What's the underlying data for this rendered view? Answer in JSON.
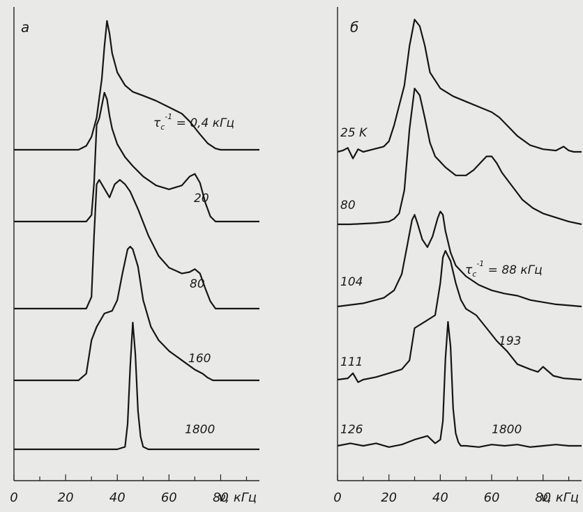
{
  "chart_data": [
    {
      "type": "line",
      "panel_label": "а",
      "xlabel": "ν, кГц",
      "xlim": [
        0,
        95
      ],
      "x_ticks": [
        "0",
        "20",
        "40",
        "60",
        "80"
      ],
      "series": [
        {
          "name": "τ_c⁻¹ = 0,4 кГц",
          "label_html": "τ<tspan baseline-shift=\"-4\" font-size=\"11\">c</tspan><tspan baseline-shift=\"11\" font-size=\"11\">-1</tspan><tspan> = 0,4 кГц</tspan>",
          "x": [
            0,
            25,
            28,
            30,
            32,
            34,
            35,
            36,
            37,
            38,
            40,
            43,
            46,
            50,
            55,
            60,
            65,
            68,
            72,
            75,
            78,
            80,
            95
          ],
          "y": [
            0,
            0,
            0.03,
            0.1,
            0.25,
            0.55,
            0.8,
            1.0,
            0.9,
            0.75,
            0.6,
            0.5,
            0.45,
            0.42,
            0.38,
            0.33,
            0.28,
            0.22,
            0.12,
            0.05,
            0.01,
            0,
            0
          ]
        },
        {
          "name": "20",
          "x": [
            0,
            28,
            30,
            31,
            32,
            33,
            34,
            35,
            36,
            37,
            38,
            40,
            43,
            46,
            50,
            55,
            60,
            65,
            68,
            70,
            72,
            74,
            76,
            78,
            95
          ],
          "y": [
            0,
            0,
            0.05,
            0.3,
            0.75,
            0.8,
            0.9,
            1.0,
            0.95,
            0.82,
            0.72,
            0.6,
            0.5,
            0.43,
            0.35,
            0.28,
            0.25,
            0.28,
            0.35,
            0.37,
            0.3,
            0.15,
            0.04,
            0,
            0
          ]
        },
        {
          "name": "80",
          "x": [
            0,
            28,
            30,
            31,
            32,
            33,
            35,
            37,
            39,
            41,
            43,
            45,
            48,
            52,
            56,
            60,
            65,
            68,
            70,
            72,
            74,
            76,
            78,
            95
          ],
          "y": [
            0,
            0,
            0.08,
            0.5,
            0.85,
            0.88,
            0.82,
            0.76,
            0.85,
            0.88,
            0.85,
            0.8,
            0.68,
            0.5,
            0.36,
            0.28,
            0.24,
            0.25,
            0.27,
            0.24,
            0.14,
            0.05,
            0,
            0
          ]
        },
        {
          "name": "160",
          "x": [
            0,
            25,
            28,
            30,
            32,
            35,
            38,
            40,
            42,
            44,
            45,
            46,
            48,
            50,
            53,
            56,
            60,
            65,
            70,
            73,
            75,
            77,
            95
          ],
          "y": [
            0,
            0,
            0.05,
            0.3,
            0.4,
            0.5,
            0.52,
            0.6,
            0.8,
            0.98,
            1.0,
            0.98,
            0.85,
            0.6,
            0.4,
            0.3,
            0.22,
            0.15,
            0.08,
            0.05,
            0.02,
            0,
            0
          ]
        },
        {
          "name": "1800",
          "x": [
            0,
            40,
            43,
            44,
            45,
            46,
            47,
            48,
            49,
            50,
            52,
            95
          ],
          "y": [
            0,
            0,
            0.02,
            0.2,
            0.65,
            1.0,
            0.75,
            0.3,
            0.1,
            0.02,
            0,
            0
          ]
        }
      ]
    },
    {
      "type": "line",
      "panel_label": "б",
      "xlabel": "ν, кГц",
      "xlim": [
        0,
        95
      ],
      "x_ticks": [
        "0",
        "20",
        "40",
        "60",
        "80"
      ],
      "annotation": "τ<tspan baseline-shift=\"-4\" font-size=\"11\">c</tspan><tspan baseline-shift=\"11\" font-size=\"11\">-1</tspan><tspan> = 88 кГц</tspan>",
      "series": [
        {
          "name": "25 K",
          "x": [
            0,
            2,
            4,
            6,
            8,
            10,
            14,
            18,
            20,
            22,
            24,
            26,
            28,
            30,
            32,
            34,
            36,
            40,
            45,
            50,
            55,
            60,
            63,
            66,
            70,
            75,
            80,
            85,
            88,
            90,
            92,
            95
          ],
          "y": [
            0,
            0.01,
            0.03,
            -0.05,
            0.02,
            0,
            0.02,
            0.04,
            0.08,
            0.2,
            0.35,
            0.5,
            0.8,
            1.0,
            0.95,
            0.8,
            0.6,
            0.48,
            0.42,
            0.38,
            0.34,
            0.3,
            0.26,
            0.2,
            0.12,
            0.05,
            0.02,
            0.01,
            0.04,
            0.01,
            0,
            0
          ]
        },
        {
          "name": "80",
          "x": [
            0,
            5,
            15,
            20,
            22,
            24,
            26,
            28,
            30,
            32,
            34,
            36,
            38,
            42,
            46,
            50,
            53,
            56,
            58,
            60,
            62,
            64,
            68,
            72,
            76,
            80,
            85,
            90,
            95
          ],
          "y": [
            0,
            0,
            0.01,
            0.02,
            0.04,
            0.08,
            0.25,
            0.7,
            1.0,
            0.95,
            0.78,
            0.6,
            0.5,
            0.42,
            0.36,
            0.36,
            0.4,
            0.46,
            0.5,
            0.5,
            0.45,
            0.38,
            0.28,
            0.18,
            0.12,
            0.08,
            0.05,
            0.02,
            0
          ]
        },
        {
          "name": "104",
          "x": [
            0,
            10,
            18,
            22,
            25,
            27,
            29,
            30,
            31,
            33,
            35,
            37,
            39,
            40,
            41,
            42,
            44,
            46,
            50,
            55,
            60,
            65,
            70,
            75,
            80,
            85,
            90,
            95
          ],
          "y": [
            0,
            0.03,
            0.08,
            0.15,
            0.3,
            0.55,
            0.8,
            0.85,
            0.78,
            0.62,
            0.55,
            0.65,
            0.82,
            0.88,
            0.85,
            0.7,
            0.5,
            0.38,
            0.28,
            0.2,
            0.15,
            0.12,
            0.1,
            0.06,
            0.04,
            0.02,
            0.01,
            0
          ]
        },
        {
          "name": "111",
          "x": [
            0,
            4,
            6,
            8,
            10,
            15,
            20,
            25,
            28,
            30,
            34,
            38,
            40,
            41,
            42,
            44,
            46,
            48,
            50,
            54,
            58,
            62,
            66,
            70,
            75,
            78,
            80,
            84,
            88,
            95
          ],
          "y": [
            0,
            0.01,
            0.05,
            -0.02,
            0,
            0.02,
            0.05,
            0.08,
            0.15,
            0.4,
            0.45,
            0.5,
            0.75,
            0.95,
            1.0,
            0.92,
            0.75,
            0.62,
            0.55,
            0.5,
            0.4,
            0.3,
            0.22,
            0.12,
            0.08,
            0.06,
            0.1,
            0.03,
            0.01,
            0
          ]
        },
        {
          "name": "126",
          "x": [
            0,
            5,
            10,
            15,
            20,
            25,
            30,
            35,
            38,
            40,
            41,
            42,
            43,
            44,
            45,
            46,
            47,
            48,
            50,
            55,
            60,
            65,
            70,
            75,
            80,
            85,
            90,
            95
          ],
          "y": [
            0,
            0.02,
            0,
            0.02,
            -0.01,
            0.01,
            0.05,
            0.08,
            0.02,
            0.05,
            0.2,
            0.7,
            1.0,
            0.8,
            0.3,
            0.1,
            0.03,
            0,
            0,
            -0.01,
            0.01,
            0,
            0.01,
            -0.01,
            0,
            0.01,
            0,
            0
          ]
        }
      ],
      "curve_notes": [
        "193",
        "1800"
      ]
    }
  ]
}
